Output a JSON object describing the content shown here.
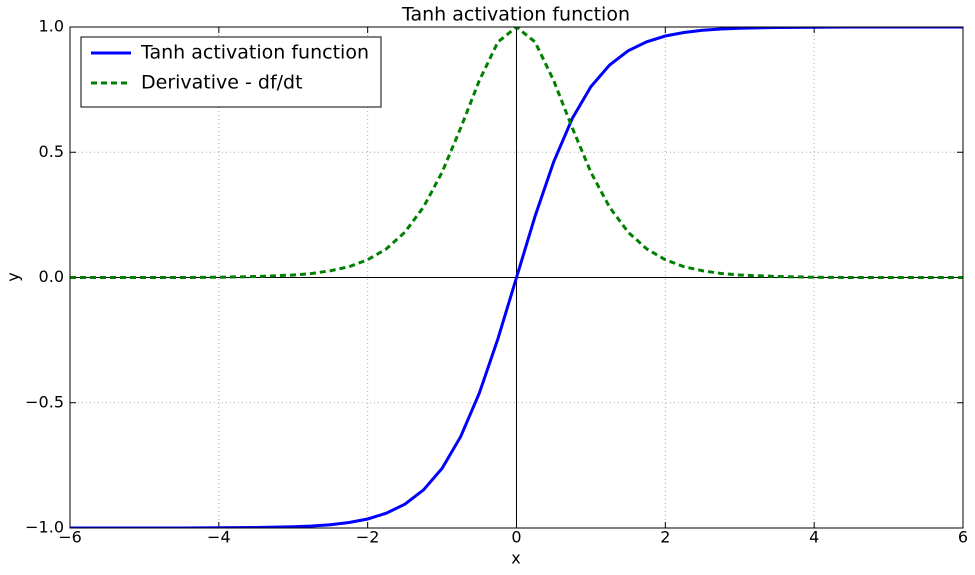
{
  "chart_data": {
    "type": "line",
    "title": "Tanh activation function",
    "x_label": "x",
    "y_label": "y",
    "x": [
      -6,
      -5.5,
      -5,
      -4.5,
      -4,
      -3.5,
      -3,
      -2.75,
      -2.5,
      -2.25,
      -2,
      -1.75,
      -1.5,
      -1.25,
      -1,
      -0.75,
      -0.5,
      -0.25,
      0,
      0.25,
      0.5,
      0.75,
      1,
      1.25,
      1.5,
      1.75,
      2,
      2.25,
      2.5,
      2.75,
      3,
      3.5,
      4,
      4.5,
      5,
      5.5,
      6
    ],
    "series": [
      {
        "name": "Tanh activation function",
        "color": "#0000ff",
        "linestyle": "solid",
        "values": [
          -1,
          -1,
          -1,
          -1,
          -0.999,
          -0.998,
          -0.995,
          -0.992,
          -0.987,
          -0.978,
          -0.964,
          -0.941,
          -0.905,
          -0.848,
          -0.762,
          -0.635,
          -0.462,
          -0.245,
          0,
          0.245,
          0.462,
          0.635,
          0.762,
          0.848,
          0.905,
          0.941,
          0.964,
          0.978,
          0.987,
          0.992,
          0.995,
          0.998,
          0.999,
          1,
          1,
          1,
          1
        ]
      },
      {
        "name": "Derivative - df/dt",
        "color": "#008000",
        "linestyle": "dashed",
        "values": [
          0,
          0,
          0,
          0,
          0.001,
          0.004,
          0.01,
          0.016,
          0.027,
          0.043,
          0.071,
          0.114,
          0.181,
          0.281,
          0.42,
          0.597,
          0.786,
          0.94,
          1,
          0.94,
          0.786,
          0.597,
          0.42,
          0.281,
          0.181,
          0.114,
          0.071,
          0.043,
          0.027,
          0.016,
          0.01,
          0.004,
          0.001,
          0,
          0,
          0,
          0
        ]
      }
    ],
    "xlim": [
      -6,
      6
    ],
    "xticks": [
      {
        "value": -6,
        "label": "−6"
      },
      {
        "value": -4,
        "label": "−4"
      },
      {
        "value": -2,
        "label": "−2"
      },
      0,
      2,
      4,
      6
    ],
    "ylim": [
      -1,
      1
    ],
    "yticks": [
      {
        "value": -1,
        "label": "−1.0"
      },
      {
        "value": -0.5,
        "label": "−0.5"
      },
      {
        "value": 0,
        "label": "0.0"
      },
      0.5,
      {
        "value": 1,
        "label": "1.0"
      }
    ],
    "grid": true,
    "legend": "upper left"
  }
}
